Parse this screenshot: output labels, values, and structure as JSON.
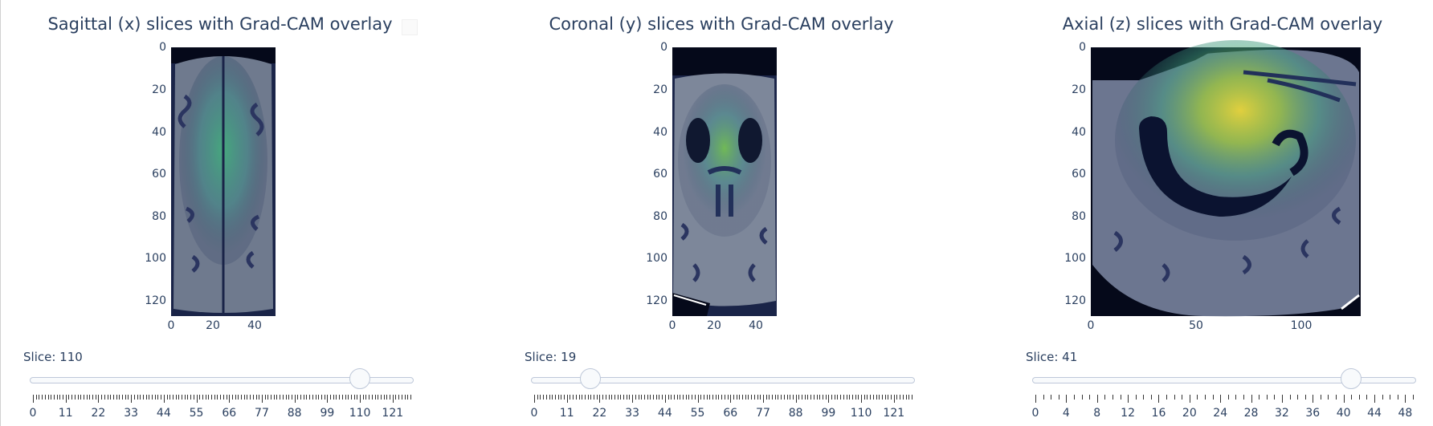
{
  "colors": {
    "text": "#2a3f5f",
    "track_border": "#bec8d9",
    "handle_fill": "#f8fafc",
    "scan_dark": "#0b1124",
    "overlay_green": "#3fb07a",
    "overlay_yellow": "#e7d43a"
  },
  "panels": [
    {
      "title": "Sagittal (x) slices with Grad-CAM overlay",
      "slice_label": "Slice: 110",
      "slice_value": 110,
      "slider_min": 0,
      "slider_max": 127,
      "slider_steps": 128,
      "slider_tick_labels": [
        "0",
        "11",
        "22",
        "33",
        "44",
        "55",
        "66",
        "77",
        "88",
        "99",
        "110",
        "121"
      ],
      "x_ticks": [
        "0",
        "20",
        "40"
      ],
      "y_ticks": [
        "0",
        "20",
        "40",
        "60",
        "80",
        "100",
        "120"
      ],
      "image_icon": "mri-sagittal-slice"
    },
    {
      "title": "Coronal (y) slices with Grad-CAM overlay",
      "slice_label": "Slice: 19",
      "slice_value": 19,
      "slider_min": 0,
      "slider_max": 127,
      "slider_steps": 128,
      "slider_tick_labels": [
        "0",
        "11",
        "22",
        "33",
        "44",
        "55",
        "66",
        "77",
        "88",
        "99",
        "110",
        "121"
      ],
      "x_ticks": [
        "0",
        "20",
        "40"
      ],
      "y_ticks": [
        "0",
        "20",
        "40",
        "60",
        "80",
        "100",
        "120"
      ],
      "image_icon": "mri-coronal-slice"
    },
    {
      "title": "Axial (z) slices with Grad-CAM overlay",
      "slice_label": "Slice: 41",
      "slice_value": 41,
      "slider_min": 0,
      "slider_max": 49,
      "slider_steps": 50,
      "slider_tick_labels": [
        "0",
        "4",
        "8",
        "12",
        "16",
        "20",
        "24",
        "28",
        "32",
        "36",
        "40",
        "44",
        "48"
      ],
      "x_ticks": [
        "0",
        "50",
        "100"
      ],
      "y_ticks": [
        "0",
        "20",
        "40",
        "60",
        "80",
        "100",
        "120"
      ],
      "image_icon": "mri-axial-slice"
    }
  ]
}
